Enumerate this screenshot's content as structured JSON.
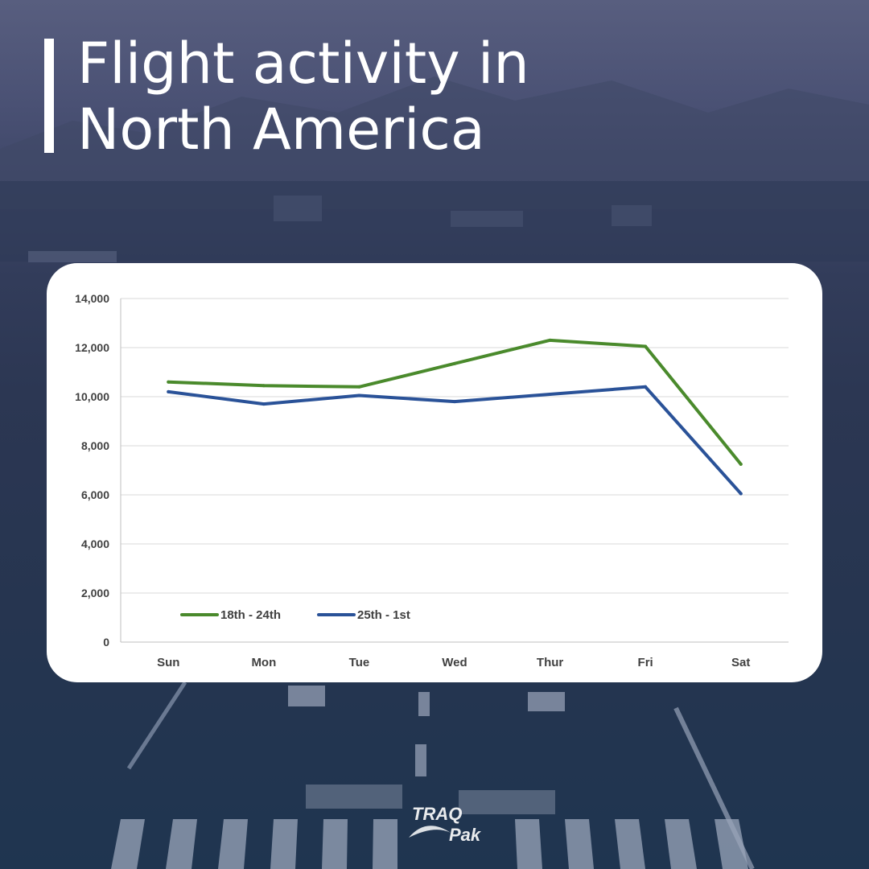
{
  "header": {
    "title": "Flight activity in\nNorth America"
  },
  "chart_data": {
    "type": "line",
    "categories": [
      "Sun",
      "Mon",
      "Tue",
      "Wed",
      "Thur",
      "Fri",
      "Sat"
    ],
    "series": [
      {
        "name": "18th - 24th",
        "color": "#4a8a2c",
        "values": [
          10600,
          10450,
          10400,
          11350,
          12300,
          12050,
          7250
        ]
      },
      {
        "name": "25th - 1st",
        "color": "#2a5298",
        "values": [
          10200,
          9700,
          10050,
          9800,
          10100,
          10400,
          6050
        ]
      }
    ],
    "y_ticks": [
      "0",
      "2,000",
      "4,000",
      "6,000",
      "8,000",
      "10,000",
      "12,000",
      "14,000"
    ],
    "ylim": [
      0,
      14000
    ],
    "grid": true,
    "legend_placement": "bottom-left"
  },
  "logo": {
    "line1": "TRAQ",
    "line2": "Pak"
  }
}
